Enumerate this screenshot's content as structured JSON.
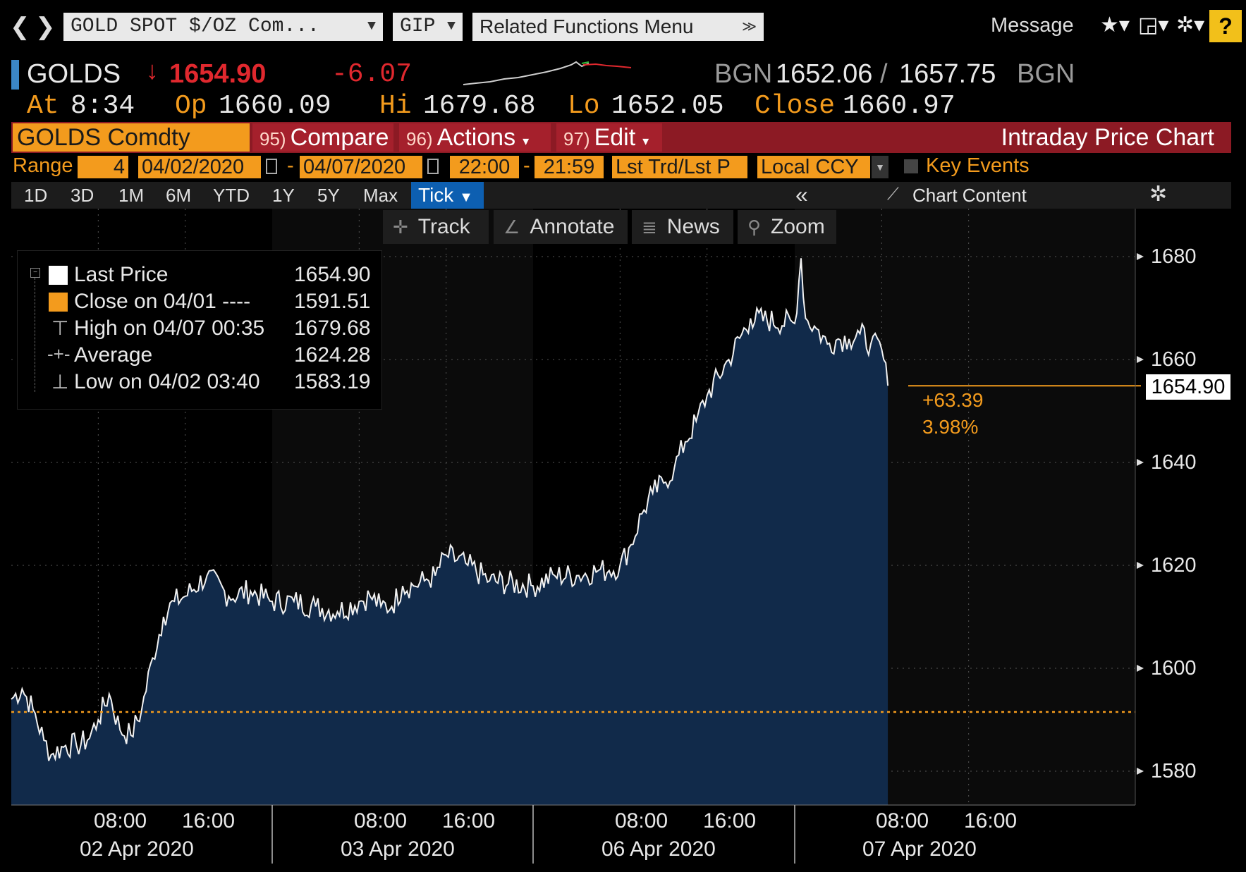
{
  "topbar": {
    "security_field": "GOLD SPOT $/OZ Com...",
    "currency_field": "GIP",
    "related_menu": "Related Functions Menu",
    "message_label": "Message",
    "help_label": "?"
  },
  "header": {
    "ticker": "GOLDS",
    "last_price": "1654.90",
    "net_change": "-6.07",
    "source_left": "BGN",
    "bid": "1652.06",
    "ask": "1657.75",
    "source_right": "BGN",
    "time_label": "At",
    "time_value": "8:34",
    "open_label": "Op",
    "open_value": "1660.09",
    "high_label": "Hi",
    "high_value": "1679.68",
    "low_label": "Lo",
    "low_value": "1652.05",
    "close_label": "Close",
    "close_value": "1660.97"
  },
  "function_bar": {
    "security": "GOLDS Comdty",
    "compare_num": "95)",
    "compare_label": "Compare",
    "actions_num": "96)",
    "actions_label": "Actions",
    "edit_num": "97)",
    "edit_label": "Edit",
    "title": "Intraday Price Chart"
  },
  "range_row": {
    "range_label": "Range",
    "range_value": "4",
    "start_date": "04/02/2020",
    "end_date": "04/07/2020",
    "start_time": "22:00",
    "end_time": "21:59",
    "price_type": "Lst Trd/Lst P",
    "currency": "Local CCY",
    "key_events": "Key Events"
  },
  "period_row": {
    "periods": [
      "1D",
      "3D",
      "1M",
      "6M",
      "YTD",
      "1Y",
      "5Y",
      "Max"
    ],
    "active": "Tick",
    "chart_content": "Chart Content"
  },
  "chart_toolbar": {
    "track": "Track",
    "annotate": "Annotate",
    "news": "News",
    "zoom": "Zoom"
  },
  "legend": [
    {
      "name": "Last Price",
      "value": "1654.90",
      "color": "#ffffff"
    },
    {
      "name": "Close on 04/01 ----",
      "value": "1591.51",
      "color": "#f39b1d"
    },
    {
      "name": "High on 04/07 00:35",
      "value": "1679.68",
      "color": ""
    },
    {
      "name": "Average",
      "value": "1624.28",
      "color": ""
    },
    {
      "name": "Low on 04/02 03:40",
      "value": "1583.19",
      "color": ""
    }
  ],
  "last_price_label": "1654.90",
  "change_abs": "+63.39",
  "change_pct": "3.98%",
  "chart_data": {
    "type": "area",
    "ylim": [
      1570,
      1685
    ],
    "y_ticks": [
      1580,
      1600,
      1620,
      1640,
      1660,
      1680
    ],
    "y_tick_labels": [
      "1580",
      "1600",
      "1620",
      "1640",
      "1660",
      "1680"
    ],
    "reference_line": 1591.51,
    "last_value": 1654.9,
    "days": [
      "02 Apr 2020",
      "03 Apr 2020",
      "06 Apr 2020",
      "07 Apr 2020"
    ],
    "x_tick_labels": [
      "08:00",
      "16:00",
      "08:00",
      "16:00",
      "08:00",
      "16:00",
      "08:00",
      "16:00"
    ],
    "series": [
      {
        "name": "Last Price",
        "x": [
          "04/02 00:00",
          "04/02 01:00",
          "04/02 02:00",
          "04/02 03:00",
          "04/02 03:40",
          "04/02 05:00",
          "04/02 06:00",
          "04/02 07:00",
          "04/02 08:00",
          "04/02 09:00",
          "04/02 10:00",
          "04/02 11:00",
          "04/02 12:00",
          "04/02 13:00",
          "04/02 14:00",
          "04/02 15:00",
          "04/02 16:00",
          "04/02 18:00",
          "04/02 20:00",
          "04/02 22:00",
          "04/03 00:00",
          "04/03 02:00",
          "04/03 04:00",
          "04/03 06:00",
          "04/03 08:00",
          "04/03 09:00",
          "04/03 10:00",
          "04/03 11:00",
          "04/03 12:00",
          "04/03 13:00",
          "04/03 14:00",
          "04/03 15:00",
          "04/03 16:00",
          "04/03 18:00",
          "04/03 20:00",
          "04/06 00:00",
          "04/06 02:00",
          "04/06 04:00",
          "04/06 06:00",
          "04/06 07:00",
          "04/06 08:00",
          "04/06 09:00",
          "04/06 10:00",
          "04/06 11:00",
          "04/06 12:00",
          "04/06 13:00",
          "04/06 14:00",
          "04/06 15:00",
          "04/06 16:00",
          "04/06 18:00",
          "04/06 20:00",
          "04/07 00:00",
          "04/07 00:35",
          "04/07 01:00",
          "04/07 02:00",
          "04/07 03:00",
          "04/07 04:00",
          "04/07 05:00",
          "04/07 06:00",
          "04/07 07:00",
          "04/07 08:00",
          "04/07 08:34"
        ],
        "values": [
          1594,
          1596,
          1592,
          1586,
          1583.19,
          1585,
          1585,
          1586,
          1590,
          1595,
          1588,
          1587,
          1592,
          1602,
          1610,
          1613,
          1614,
          1618,
          1614,
          1615,
          1613,
          1613,
          1612,
          1611,
          1613,
          1614,
          1612,
          1612,
          1616,
          1616,
          1617,
          1618,
          1622,
          1620,
          1617,
          1616,
          1618,
          1618,
          1619,
          1619,
          1620,
          1624,
          1630,
          1634,
          1636,
          1639,
          1644,
          1648,
          1653,
          1660,
          1668,
          1667,
          1679.68,
          1668,
          1666,
          1663,
          1664,
          1664,
          1665,
          1663,
          1662,
          1654.9
        ]
      }
    ]
  }
}
